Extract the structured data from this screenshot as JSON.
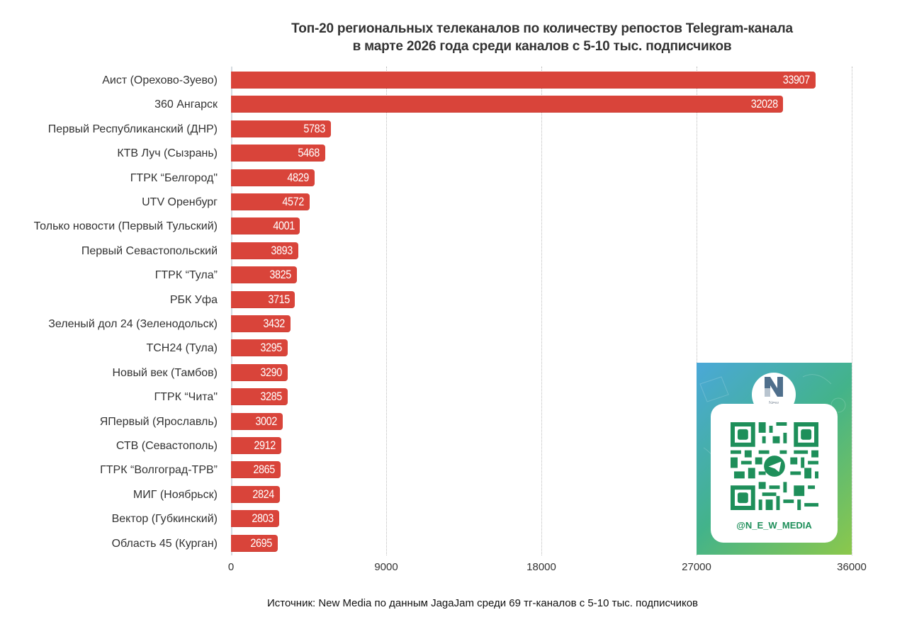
{
  "chart_data": {
    "type": "bar",
    "orientation": "horizontal",
    "title": "Топ-20 региональных телеканалов по количеству репостов Telegram-канала в марте 2026 года среди каналов с 5-10 тыс. подписчиков",
    "title_lines": [
      "Топ-20 региональных телеканалов по количеству репостов Telegram-канала",
      "в марте 2026 года среди каналов с 5-10 тыс. подписчиков"
    ],
    "xlabel": "",
    "ylabel": "",
    "xlim": [
      0,
      36000
    ],
    "x_ticks": [
      "0",
      "9000",
      "18000",
      "27000",
      "36000"
    ],
    "grid": true,
    "bar_color": "#d9443a",
    "categories": [
      "Аист (Орехово-Зуево)",
      "360 Ангарск",
      "Первый Республиканский (ДНР)",
      "КТВ Луч (Сызрань)",
      "ГТРК “Белгород\"",
      "UTV Оренбург",
      "Только новости (Первый Тульский)",
      "Первый Севастопольский",
      "ГТРК “Тула”",
      "РБК Уфа",
      "Зеленый дол 24 (Зеленодольск)",
      "ТСН24 (Тула)",
      "Новый век (Тамбов)",
      "ГТРК “Чита\"",
      "ЯПервый (Ярославль)",
      "СТВ (Севастополь)",
      "ГТРК “Волгоград-ТРВ”",
      "МИГ (Ноябрьск)",
      "Вектор (Губкинский)",
      "Область 45 (Курган)"
    ],
    "values": [
      33907,
      32028,
      5783,
      5468,
      4829,
      4572,
      4001,
      3893,
      3825,
      3715,
      3432,
      3295,
      3290,
      3285,
      3002,
      2912,
      2865,
      2824,
      2803,
      2695
    ],
    "source": "Источник: New Media по данным JagaJam среди 69 тг-каналов с 5-10 тыс. подписчиков"
  },
  "qr_card": {
    "logo_text_line1": "New",
    "logo_text_line2": "Media",
    "handle": "@N_E_W_MEDIA",
    "qr_color": "#1e8f5a"
  }
}
